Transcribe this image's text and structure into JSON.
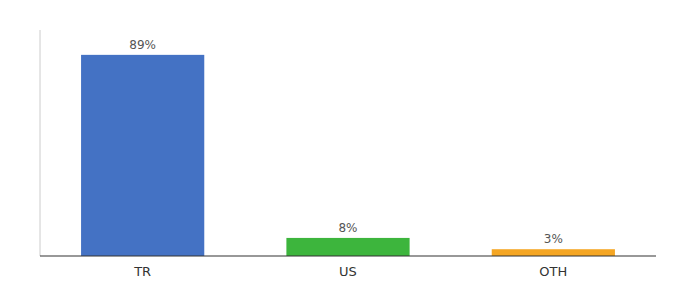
{
  "chart_data": {
    "type": "bar",
    "categories": [
      "TR",
      "US",
      "OTH"
    ],
    "values": [
      89,
      8,
      3
    ],
    "value_labels": [
      "89%",
      "8%",
      "3%"
    ],
    "colors": [
      "#4472c4",
      "#3db53d",
      "#f5a623"
    ],
    "ylim": [
      0,
      100
    ],
    "data_labels": true,
    "tick_labels": "x"
  }
}
